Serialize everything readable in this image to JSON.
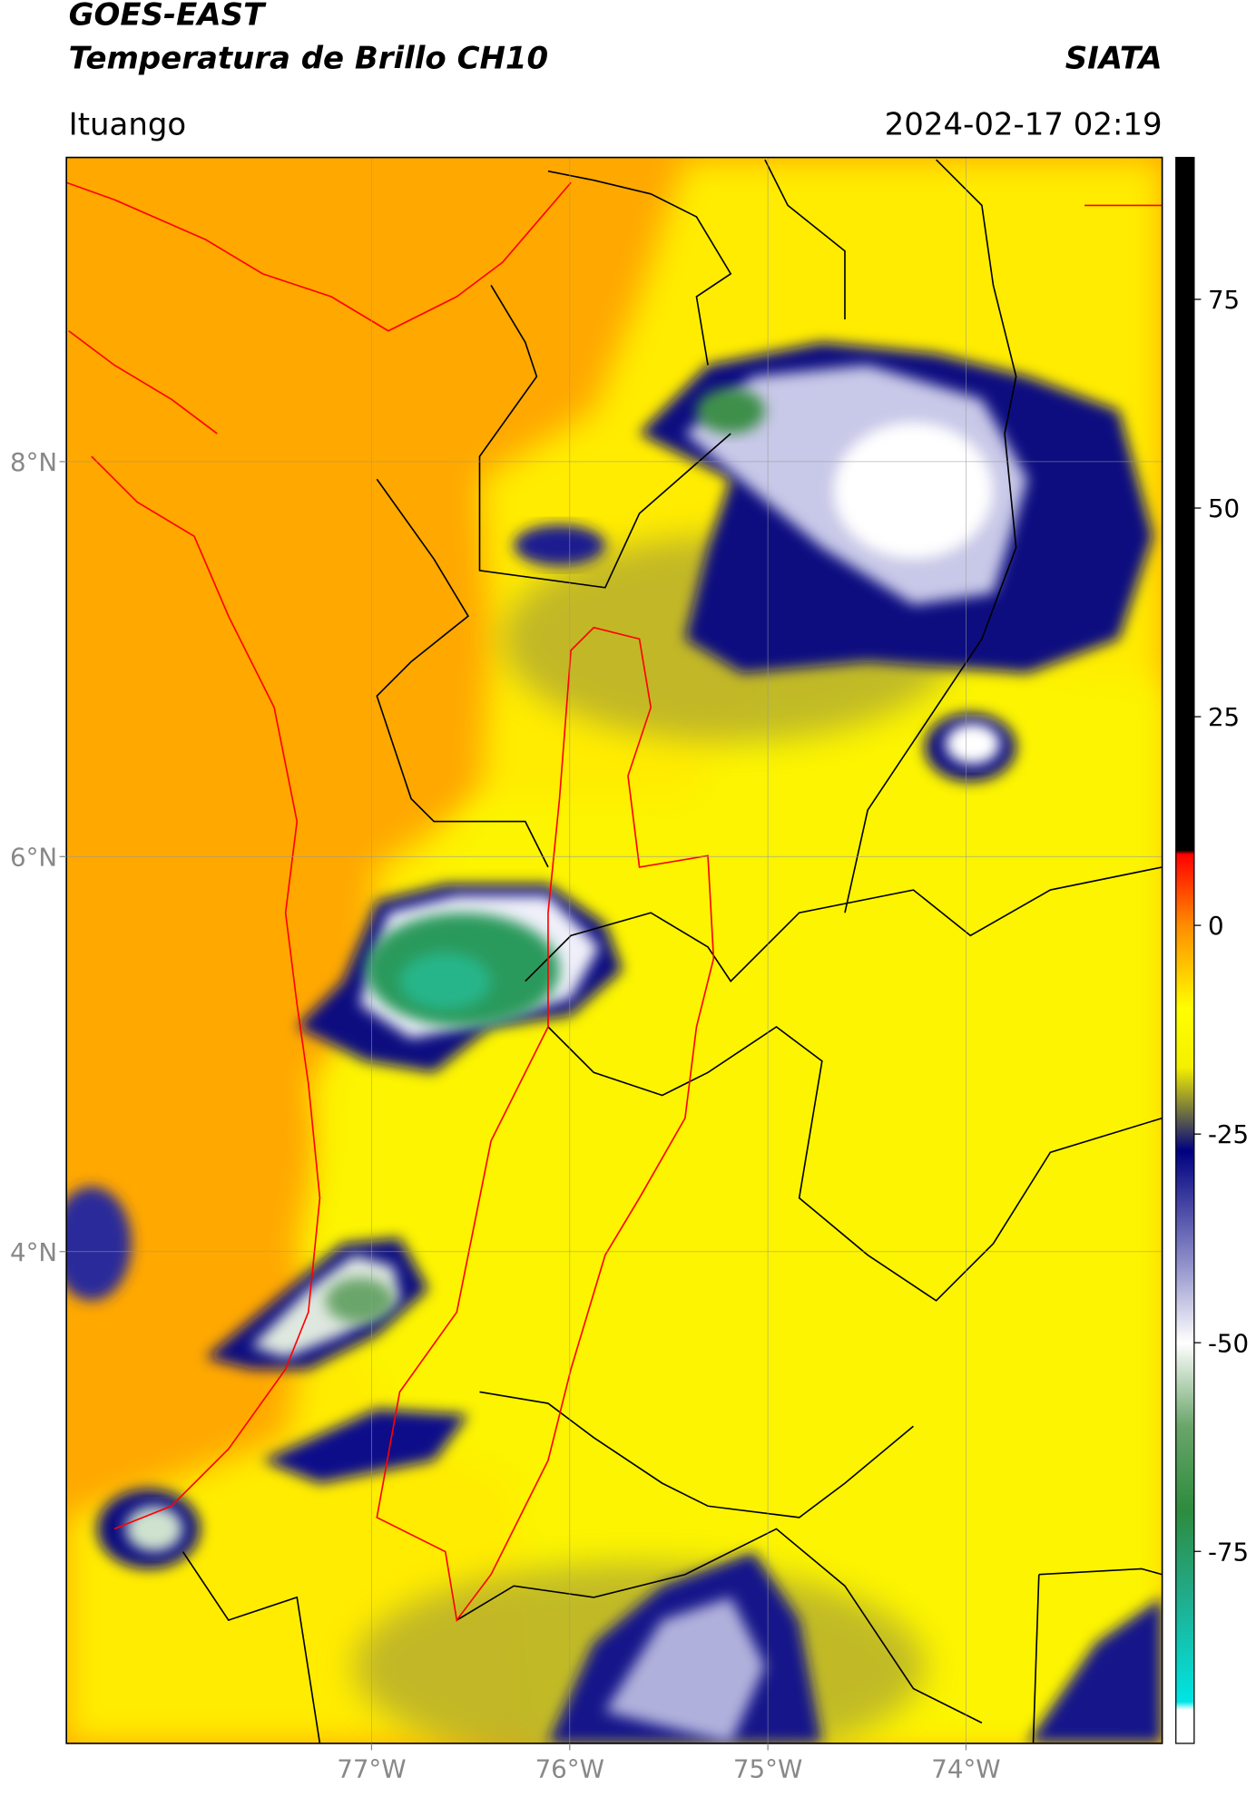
{
  "chart_data": {
    "type": "map",
    "title": "GOES-EAST",
    "subtitle": "Temperatura de Brillo CH10",
    "source": "SIATA",
    "location": "Ituango",
    "datetime": "2024-02-17 02:19",
    "xlim": [
      -78.54,
      -73.01
    ],
    "ylim": [
      1.51,
      9.54
    ],
    "xticks": [
      {
        "value": -77,
        "label": "77°W"
      },
      {
        "value": -76,
        "label": "76°W"
      },
      {
        "value": -75,
        "label": "75°W"
      },
      {
        "value": -74,
        "label": "74°W"
      }
    ],
    "yticks": [
      {
        "value": 8,
        "label": "8°N"
      },
      {
        "value": 6,
        "label": "6°N"
      },
      {
        "value": 4,
        "label": "4°N"
      }
    ],
    "grid": true,
    "clim": [
      -98,
      92
    ],
    "cticks": [
      75,
      50,
      25,
      0,
      -25,
      -50,
      -75
    ],
    "colormap": [
      {
        "value": 92,
        "color": "#000000"
      },
      {
        "value": 9,
        "color": "#000000"
      },
      {
        "value": 8.5,
        "color": "#ff0000"
      },
      {
        "value": 0,
        "color": "#ff8c00"
      },
      {
        "value": -10,
        "color": "#ffff00"
      },
      {
        "value": -17,
        "color": "#f4f000"
      },
      {
        "value": -22,
        "color": "#7a7a3c"
      },
      {
        "value": -27,
        "color": "#000080"
      },
      {
        "value": -40,
        "color": "#8a8ac8"
      },
      {
        "value": -50,
        "color": "#ffffff"
      },
      {
        "value": -60,
        "color": "#6aa56a"
      },
      {
        "value": -70,
        "color": "#2e8b3e"
      },
      {
        "value": -80,
        "color": "#22aa88"
      },
      {
        "value": -93,
        "color": "#00e5e5"
      },
      {
        "value": -94,
        "color": "#ffffff"
      },
      {
        "value": -98,
        "color": "#ffffff"
      }
    ]
  }
}
